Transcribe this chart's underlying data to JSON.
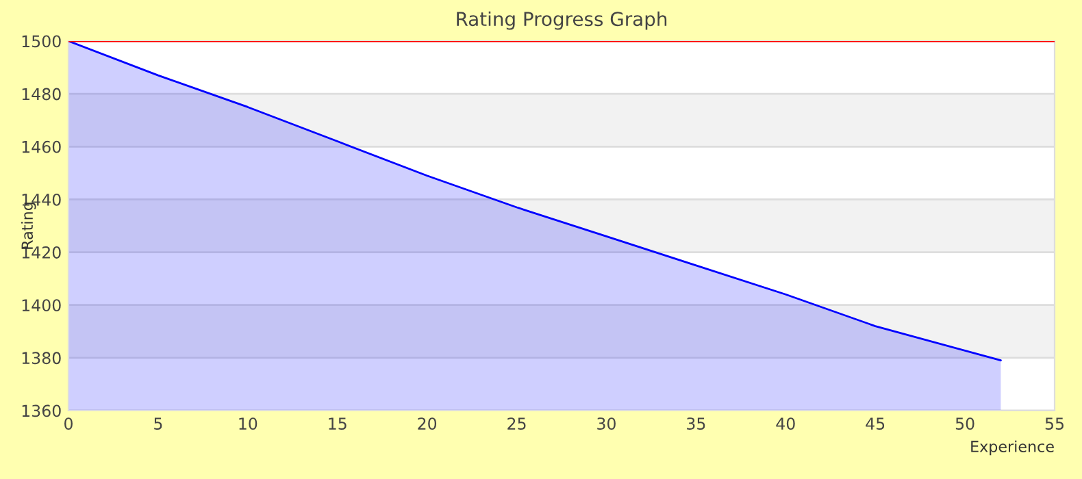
{
  "chart_data": {
    "type": "area",
    "title": "Rating Progress Graph",
    "xlabel": "Experience",
    "ylabel": "Rating",
    "x": [
      0,
      5,
      10,
      15,
      20,
      25,
      30,
      35,
      40,
      45,
      52
    ],
    "series": [
      {
        "color": "#0000ff",
        "values": [
          1500,
          1487,
          1475,
          1462,
          1449,
          1437,
          1426,
          1415,
          1404,
          1392,
          1379
        ]
      }
    ],
    "xlim": [
      0,
      55
    ],
    "xticks": [
      0,
      5,
      10,
      15,
      20,
      25,
      30,
      35,
      40,
      45,
      50,
      55
    ],
    "ylim": [
      1360,
      1500
    ],
    "yticks": [
      1360,
      1380,
      1400,
      1420,
      1440,
      1460,
      1480,
      1500
    ],
    "grid": "y",
    "legend": false,
    "ref_lines": [
      {
        "axis": "y",
        "value": 1500,
        "color": "#ff0000"
      }
    ],
    "bands": [
      {
        "axis": "y",
        "from": 1460,
        "to": 1480,
        "color": "#f2f2f2"
      },
      {
        "axis": "y",
        "from": 1420,
        "to": 1440,
        "color": "#f2f2f2"
      },
      {
        "axis": "y",
        "from": 1380,
        "to": 1400,
        "color": "#f2f2f2"
      }
    ]
  }
}
